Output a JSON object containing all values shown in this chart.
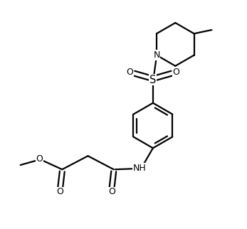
{
  "background_color": "#ffffff",
  "line_color": "#000000",
  "line_width": 1.6,
  "font_size": 9.0,
  "figsize": [
    3.47,
    3.22
  ],
  "dpi": 100,
  "xlim": [
    0,
    10
  ],
  "ylim": [
    0,
    9.3
  ]
}
